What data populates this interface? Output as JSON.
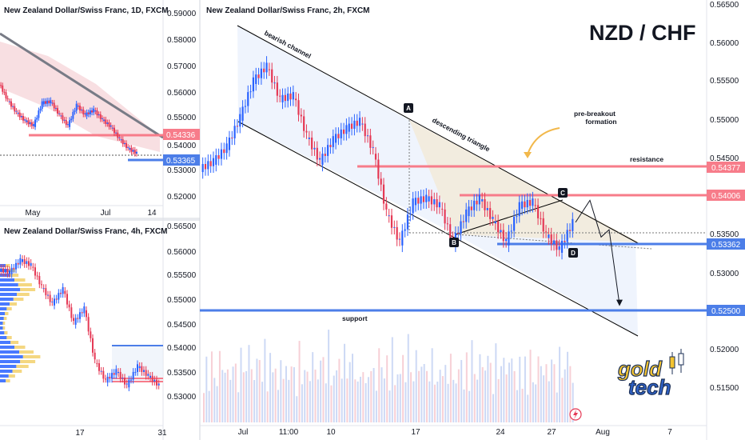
{
  "colors": {
    "up": "#2962ff",
    "down": "#e53955",
    "resistance": "#f77c8a",
    "support": "#4c7ee8",
    "channel": "#000000"
  },
  "panels": {
    "daily": {
      "title": "New Zealand Dollar/Swiss Franc, 1D, FXCM",
      "y_ticks": [
        "0.59000",
        "0.58000",
        "0.57000",
        "0.56000",
        "0.55000",
        "0.54000",
        "0.53000",
        "0.52000"
      ],
      "x_ticks": [
        "May",
        "Jul",
        "14"
      ],
      "price_labels": [
        {
          "text": "0.54336",
          "color": "#f77c8a"
        },
        {
          "text": "0.53365",
          "color": "#4c7ee8"
        }
      ]
    },
    "h4": {
      "title": "New Zealand Dollar/Swiss Franc, 4h, FXCM",
      "y_ticks": [
        "0.56500",
        "0.56000",
        "0.55500",
        "0.55000",
        "0.54500",
        "0.54000",
        "0.53500",
        "0.53000"
      ],
      "x_ticks": [
        "17",
        "31"
      ]
    },
    "main": {
      "title": "New Zealand Dollar/Swiss Franc, 2h, FXCM",
      "y_ticks": [
        "0.56500",
        "0.56000",
        "0.55500",
        "0.55000",
        "0.54500",
        "0.53500",
        "0.53000",
        "0.52000",
        "0.51500"
      ],
      "x_ticks": [
        "Jul",
        "11:00",
        "10",
        "17",
        "24",
        "27",
        "Aug",
        "7"
      ],
      "price_labels": [
        {
          "text": "0.54377",
          "color": "#f77c8a"
        },
        {
          "text": "0.54006",
          "color": "#f77c8a"
        },
        {
          "text": "0.53362",
          "color": "#4c7ee8"
        },
        {
          "text": "0.52500",
          "color": "#4c7ee8"
        }
      ],
      "heading": "NZD / CHF",
      "annotations": {
        "bearish_channel": "bearish channel",
        "descending_triangle": "descending triangle",
        "pre_breakout": "pre-breakout",
        "formation": "formation",
        "resistance": "resistance",
        "support": "support"
      },
      "points": [
        "A",
        "B",
        "C",
        "D"
      ],
      "logo": {
        "line1": "gold",
        "line2": "tech"
      }
    }
  },
  "chart_data": [
    {
      "type": "line",
      "title": "New Zealand Dollar/Swiss Franc, 1D, FXCM",
      "x_ticks": [
        "May",
        "Jul",
        "14"
      ],
      "ylim": [
        0.515,
        0.595
      ],
      "series": [
        {
          "values": [
            0.5635,
            0.5565,
            0.5515,
            0.548,
            0.546,
            0.5555,
            0.556,
            0.5505,
            0.546,
            0.5545,
            0.5505,
            0.5525,
            0.5485,
            0.5455,
            0.5405,
            0.5365,
            0.5345
          ]
        }
      ],
      "levels": [
        0.54336,
        0.53365
      ]
    },
    {
      "type": "line",
      "title": "New Zealand Dollar/Swiss Franc, 4h, FXCM",
      "x_ticks": [
        "17",
        "31"
      ],
      "ylim": [
        0.5265,
        0.568
      ],
      "series": [
        {
          "values": [
            0.5585,
            0.558,
            0.5605,
            0.5595,
            0.555,
            0.5515,
            0.5545,
            0.5475,
            0.5505,
            0.5395,
            0.5355,
            0.5375,
            0.5345,
            0.5385,
            0.5365,
            0.5345
          ]
        }
      ],
      "levels": [
        0.54006,
        0.53362
      ]
    },
    {
      "type": "line",
      "title": "New Zealand Dollar/Swiss Franc, 2h, FXCM",
      "x_ticks": [
        "Jul",
        "11:00",
        "10",
        "17",
        "24",
        "27",
        "Aug",
        "7"
      ],
      "ylim": [
        0.5085,
        0.5665
      ],
      "series": [
        {
          "values": [
            0.5435,
            0.5445,
            0.5465,
            0.5505,
            0.5555,
            0.5575,
            0.553,
            0.5535,
            0.548,
            0.5445,
            0.5475,
            0.549,
            0.55,
            0.546,
            0.5375,
            0.5335,
            0.539,
            0.5395,
            0.5385,
            0.5335,
            0.5375,
            0.5395,
            0.5365,
            0.5335,
            0.5385,
            0.539,
            0.5345,
            0.5325,
            0.5362
          ]
        }
      ],
      "projection": [
        0.5362,
        0.5392,
        0.5342,
        0.5352,
        0.525
      ],
      "levels": [
        0.54377,
        0.54006,
        0.53362,
        0.525
      ],
      "volume": [
        0.42,
        0.55,
        0.38,
        0.61,
        0.47,
        0.33,
        0.68,
        0.52,
        0.44,
        0.59,
        0.36,
        0.72,
        0.49,
        0.4,
        0.63,
        0.57,
        0.45,
        0.78,
        0.5,
        0.39,
        0.66,
        0.54,
        0.48,
        0.7,
        0.43,
        0.58,
        0.62,
        0.46,
        0.35,
        0.56
      ]
    }
  ]
}
